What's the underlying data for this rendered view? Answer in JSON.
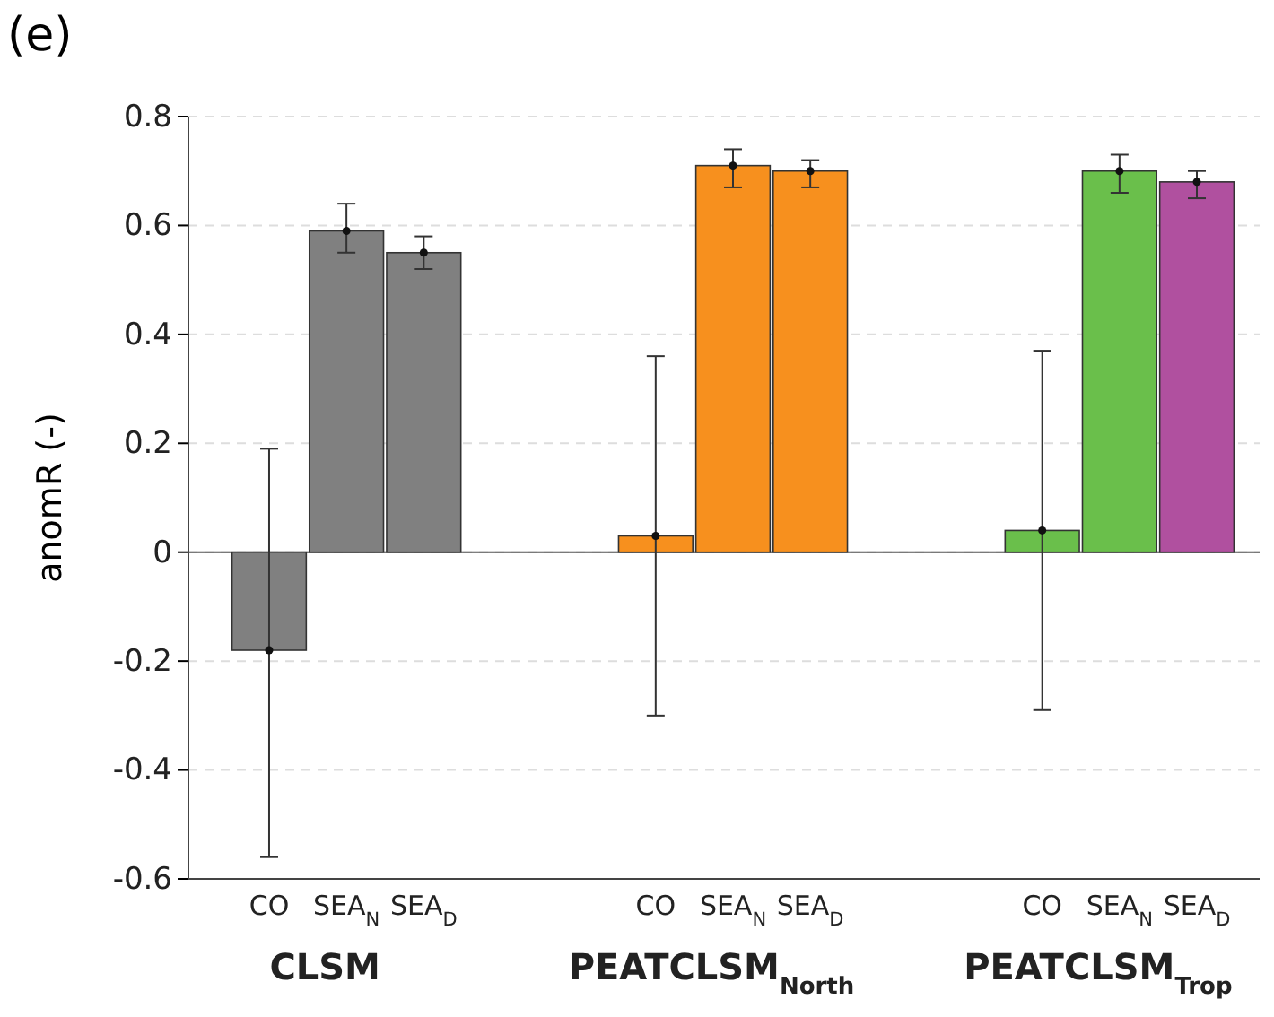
{
  "chart_data": {
    "type": "bar",
    "title": "(e)",
    "ylabel": "anomR (-)",
    "categories": [
      "CO",
      "SEA$_{N}$",
      "SEA$_{D}$",
      null,
      null,
      "CO",
      "SEA$_{N}$",
      "SEA$_{D}$",
      null,
      null,
      "CO",
      "SEA$_{N}$",
      "SEA$_{D}$"
    ],
    "series": [
      {
        "values": [
          -0.18,
          0.59,
          0.55,
          null,
          null,
          0.03,
          0.71,
          0.7,
          null,
          null,
          0.04,
          0.7,
          0.68
        ],
        "colors": [
          "#808080",
          "#808080",
          "#808080",
          null,
          null,
          "#f7901e",
          "#f7901e",
          "#f7901e",
          null,
          null,
          "#6abf4b",
          "#6abf4b",
          "#b0509f"
        ],
        "errors": [
          [
            -0.56,
            0.19
          ],
          [
            0.55,
            0.64
          ],
          [
            0.52,
            0.58
          ],
          null,
          null,
          [
            -0.3,
            0.36
          ],
          [
            0.67,
            0.74
          ],
          [
            0.67,
            0.72
          ],
          null,
          null,
          [
            -0.29,
            0.37
          ],
          [
            0.66,
            0.73
          ],
          [
            0.65,
            0.7
          ]
        ]
      },
      {
        "type": "scatter",
        "color": "#111111",
        "values": [
          -0.18,
          0.59,
          0.55,
          null,
          null,
          0.03,
          0.71,
          0.7,
          null,
          null,
          0.04,
          0.7,
          0.68
        ]
      }
    ],
    "ylim": [
      -0.6,
      0.8
    ],
    "yticks": [
      -0.6,
      -0.4,
      -0.2,
      0,
      0.2,
      0.4,
      0.6,
      0.8
    ],
    "grid": "y",
    "marker": "circle",
    "ref_lines": [
      {
        "axis": "y",
        "value": 0,
        "color": "#555555"
      }
    ],
    "annotations": [
      "CLSM",
      "PEATCLSM$_{North}$",
      "PEATCLSM$_{Trop}$"
    ]
  }
}
